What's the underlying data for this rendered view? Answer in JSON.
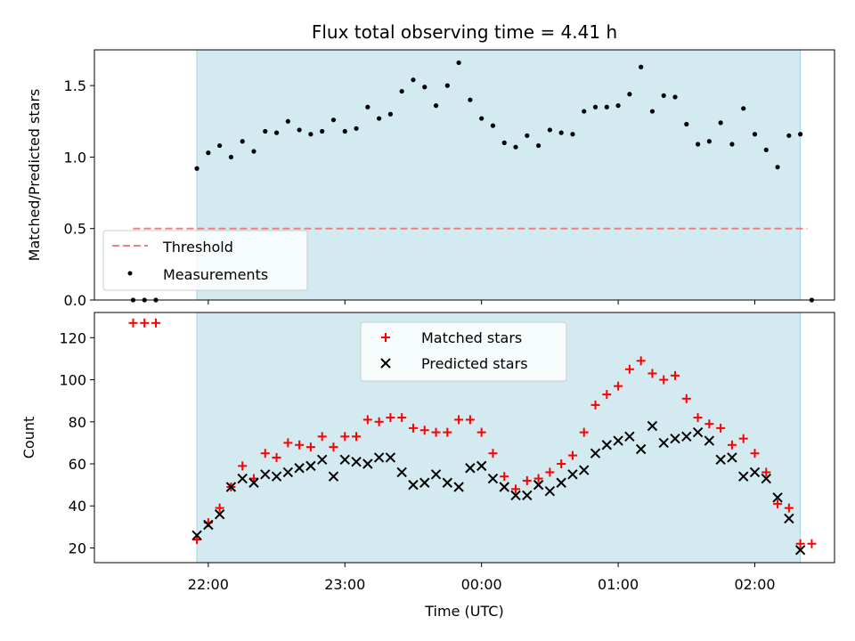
{
  "chart_data": [
    {
      "type": "scatter",
      "title": "Flux total observing time = 4.41 h",
      "xlabel": "",
      "ylabel": "Matched/Predicted stars",
      "ylim": [
        0,
        1.75
      ],
      "yticks": [
        "0.0",
        "0.5",
        "1.0",
        "1.5"
      ],
      "shaded_span": [
        "21:55",
        "02:20"
      ],
      "threshold": {
        "name": "Threshold",
        "value": 0.5,
        "x_range": [
          "21:27",
          "02:23"
        ],
        "color": "#f08080"
      },
      "series": [
        {
          "name": "Measurements",
          "color": "#000000",
          "marker": "dot",
          "points": [
            [
              "21:27",
              0.0
            ],
            [
              "21:32",
              0.0
            ],
            [
              "21:37",
              0.0
            ],
            [
              "21:55",
              0.92
            ],
            [
              "22:00",
              1.03
            ],
            [
              "22:05",
              1.08
            ],
            [
              "22:10",
              1.0
            ],
            [
              "22:15",
              1.11
            ],
            [
              "22:20",
              1.04
            ],
            [
              "22:25",
              1.18
            ],
            [
              "22:30",
              1.17
            ],
            [
              "22:35",
              1.25
            ],
            [
              "22:40",
              1.19
            ],
            [
              "22:45",
              1.16
            ],
            [
              "22:50",
              1.18
            ],
            [
              "22:55",
              1.26
            ],
            [
              "23:00",
              1.18
            ],
            [
              "23:05",
              1.2
            ],
            [
              "23:10",
              1.35
            ],
            [
              "23:15",
              1.27
            ],
            [
              "23:20",
              1.3
            ],
            [
              "23:25",
              1.46
            ],
            [
              "23:30",
              1.54
            ],
            [
              "23:35",
              1.49
            ],
            [
              "23:40",
              1.36
            ],
            [
              "23:45",
              1.5
            ],
            [
              "23:50",
              1.66
            ],
            [
              "23:55",
              1.4
            ],
            [
              "00:00",
              1.27
            ],
            [
              "00:05",
              1.22
            ],
            [
              "00:10",
              1.1
            ],
            [
              "00:15",
              1.07
            ],
            [
              "00:20",
              1.15
            ],
            [
              "00:25",
              1.08
            ],
            [
              "00:30",
              1.19
            ],
            [
              "00:35",
              1.17
            ],
            [
              "00:40",
              1.16
            ],
            [
              "00:45",
              1.32
            ],
            [
              "00:50",
              1.35
            ],
            [
              "00:55",
              1.35
            ],
            [
              "01:00",
              1.36
            ],
            [
              "01:05",
              1.44
            ],
            [
              "01:10",
              1.63
            ],
            [
              "01:15",
              1.32
            ],
            [
              "01:20",
              1.43
            ],
            [
              "01:25",
              1.42
            ],
            [
              "01:30",
              1.23
            ],
            [
              "01:35",
              1.09
            ],
            [
              "01:40",
              1.11
            ],
            [
              "01:45",
              1.24
            ],
            [
              "01:50",
              1.09
            ],
            [
              "01:55",
              1.34
            ],
            [
              "02:00",
              1.16
            ],
            [
              "02:05",
              1.05
            ],
            [
              "02:10",
              0.93
            ],
            [
              "02:15",
              1.15
            ],
            [
              "02:20",
              1.16
            ],
            [
              "02:25",
              0.0
            ]
          ]
        }
      ],
      "legend": {
        "placement": "lower-left",
        "entries": [
          "Threshold",
          "Measurements"
        ]
      }
    },
    {
      "type": "scatter",
      "title": "",
      "xlabel": "Time (UTC)",
      "ylabel": "Count",
      "ylim": [
        13,
        132
      ],
      "yticks": [
        "20",
        "40",
        "60",
        "80",
        "100",
        "120"
      ],
      "xticks": [
        "22:00",
        "23:00",
        "00:00",
        "01:00",
        "02:00"
      ],
      "shaded_span": [
        "21:55",
        "02:20"
      ],
      "series": [
        {
          "name": "Matched stars",
          "color": "#ff0000",
          "marker": "plus",
          "points": [
            [
              "21:27",
              127
            ],
            [
              "21:32",
              127
            ],
            [
              "21:37",
              127
            ],
            [
              "21:55",
              24
            ],
            [
              "22:00",
              32
            ],
            [
              "22:05",
              39
            ],
            [
              "22:10",
              49
            ],
            [
              "22:15",
              59
            ],
            [
              "22:20",
              53
            ],
            [
              "22:25",
              65
            ],
            [
              "22:30",
              63
            ],
            [
              "22:35",
              70
            ],
            [
              "22:40",
              69
            ],
            [
              "22:45",
              68
            ],
            [
              "22:50",
              73
            ],
            [
              "22:55",
              68
            ],
            [
              "23:00",
              73
            ],
            [
              "23:05",
              73
            ],
            [
              "23:10",
              81
            ],
            [
              "23:15",
              80
            ],
            [
              "23:20",
              82
            ],
            [
              "23:25",
              82
            ],
            [
              "23:30",
              77
            ],
            [
              "23:35",
              76
            ],
            [
              "23:40",
              75
            ],
            [
              "23:45",
              75
            ],
            [
              "23:50",
              81
            ],
            [
              "23:55",
              81
            ],
            [
              "00:00",
              75
            ],
            [
              "00:05",
              65
            ],
            [
              "00:10",
              54
            ],
            [
              "00:15",
              48
            ],
            [
              "00:20",
              52
            ],
            [
              "00:25",
              53
            ],
            [
              "00:30",
              56
            ],
            [
              "00:35",
              60
            ],
            [
              "00:40",
              64
            ],
            [
              "00:45",
              75
            ],
            [
              "00:50",
              88
            ],
            [
              "00:55",
              93
            ],
            [
              "01:00",
              97
            ],
            [
              "01:05",
              105
            ],
            [
              "01:10",
              109
            ],
            [
              "01:15",
              103
            ],
            [
              "01:20",
              100
            ],
            [
              "01:25",
              102
            ],
            [
              "01:30",
              91
            ],
            [
              "01:35",
              82
            ],
            [
              "01:40",
              79
            ],
            [
              "01:45",
              77
            ],
            [
              "01:50",
              69
            ],
            [
              "01:55",
              72
            ],
            [
              "02:00",
              65
            ],
            [
              "02:05",
              56
            ],
            [
              "02:10",
              41
            ],
            [
              "02:15",
              39
            ],
            [
              "02:20",
              22
            ],
            [
              "02:25",
              22
            ]
          ]
        },
        {
          "name": "Predicted stars",
          "color": "#000000",
          "marker": "x",
          "points": [
            [
              "21:55",
              26
            ],
            [
              "22:00",
              31
            ],
            [
              "22:05",
              36
            ],
            [
              "22:10",
              49
            ],
            [
              "22:15",
              53
            ],
            [
              "22:20",
              51
            ],
            [
              "22:25",
              55
            ],
            [
              "22:30",
              54
            ],
            [
              "22:35",
              56
            ],
            [
              "22:40",
              58
            ],
            [
              "22:45",
              59
            ],
            [
              "22:50",
              62
            ],
            [
              "22:55",
              54
            ],
            [
              "23:00",
              62
            ],
            [
              "23:05",
              61
            ],
            [
              "23:10",
              60
            ],
            [
              "23:15",
              63
            ],
            [
              "23:20",
              63
            ],
            [
              "23:25",
              56
            ],
            [
              "23:30",
              50
            ],
            [
              "23:35",
              51
            ],
            [
              "23:40",
              55
            ],
            [
              "23:45",
              51
            ],
            [
              "23:50",
              49
            ],
            [
              "23:55",
              58
            ],
            [
              "00:00",
              59
            ],
            [
              "00:05",
              53
            ],
            [
              "00:10",
              49
            ],
            [
              "00:15",
              45
            ],
            [
              "00:20",
              45
            ],
            [
              "00:25",
              50
            ],
            [
              "00:30",
              47
            ],
            [
              "00:35",
              51
            ],
            [
              "00:40",
              55
            ],
            [
              "00:45",
              57
            ],
            [
              "00:50",
              65
            ],
            [
              "00:55",
              69
            ],
            [
              "01:00",
              71
            ],
            [
              "01:05",
              73
            ],
            [
              "01:10",
              67
            ],
            [
              "01:15",
              78
            ],
            [
              "01:20",
              70
            ],
            [
              "01:25",
              72
            ],
            [
              "01:30",
              73
            ],
            [
              "01:35",
              75
            ],
            [
              "01:40",
              71
            ],
            [
              "01:45",
              62
            ],
            [
              "01:50",
              63
            ],
            [
              "01:55",
              54
            ],
            [
              "02:00",
              56
            ],
            [
              "02:05",
              53
            ],
            [
              "02:10",
              44
            ],
            [
              "02:15",
              34
            ],
            [
              "02:20",
              19
            ]
          ]
        }
      ],
      "legend": {
        "placement": "top-center",
        "entries": [
          "Matched stars",
          "Predicted stars"
        ]
      }
    }
  ],
  "colors": {
    "shaded_span": "#d3eaf0",
    "shaded_edge": "#a8d3e0",
    "threshold": "#f08080",
    "matched": "#ff0000",
    "predicted": "#000000",
    "measurements": "#000000"
  }
}
